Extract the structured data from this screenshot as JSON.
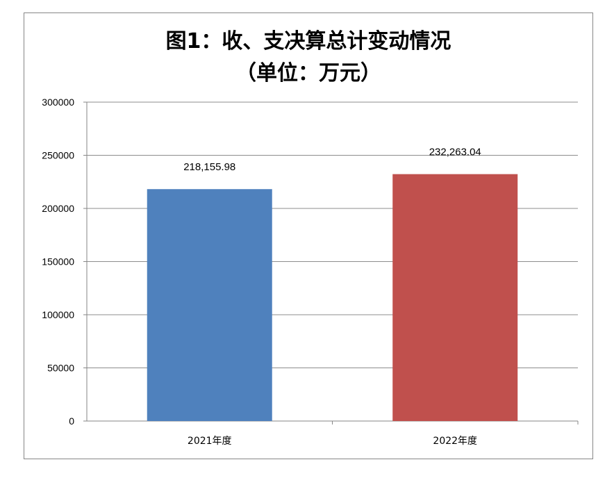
{
  "chart_data": {
    "type": "bar",
    "title": "图1：收、支决算总计变动情况",
    "subtitle": "（单位：万元）",
    "categories": [
      "2021年度",
      "2022年度"
    ],
    "values": [
      218155.98,
      232263.04
    ],
    "data_labels": [
      "218,155.98",
      "232,263.04"
    ],
    "bar_colors": [
      "#4F81BD",
      "#C0504D"
    ],
    "yticks": [
      "0",
      "50000",
      "100000",
      "150000",
      "200000",
      "250000",
      "300000"
    ],
    "ylim": [
      0,
      300000
    ],
    "xlabel": "",
    "ylabel": "",
    "grid": true,
    "legend": "none"
  }
}
